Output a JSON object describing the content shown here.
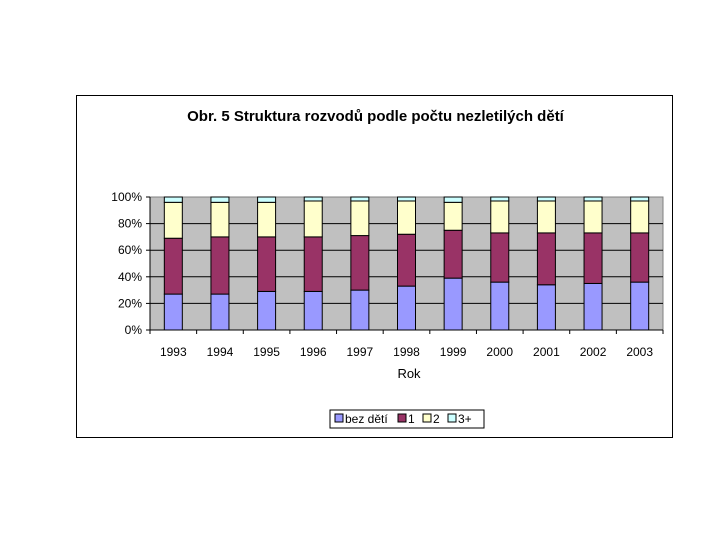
{
  "chart_data": {
    "type": "bar",
    "stacked": true,
    "percent_stacked": true,
    "title": "Obr. 5  Struktura rozvodů podle počtu nezletilých dětí",
    "xlabel": "Rok",
    "ylabel": "",
    "ylim": [
      0,
      100
    ],
    "yticks": [
      "0%",
      "20%",
      "40%",
      "60%",
      "80%",
      "100%"
    ],
    "categories": [
      "1993",
      "1994",
      "1995",
      "1996",
      "1997",
      "1998",
      "1999",
      "2000",
      "2001",
      "2002",
      "2003"
    ],
    "series": [
      {
        "name": "bez dětí",
        "color": "#9999FF",
        "values": [
          27,
          27,
          29,
          29,
          30,
          33,
          39,
          36,
          34,
          35,
          36
        ]
      },
      {
        "name": "1",
        "color": "#993366",
        "values": [
          42,
          43,
          41,
          41,
          41,
          39,
          36,
          37,
          39,
          38,
          37
        ]
      },
      {
        "name": "2",
        "color": "#FFFFCC",
        "values": [
          27,
          26,
          26,
          27,
          26,
          25,
          21,
          24,
          24,
          24,
          24
        ]
      },
      {
        "name": "3+",
        "color": "#CCFFFF",
        "values": [
          4,
          4,
          4,
          3,
          3,
          3,
          4,
          3,
          3,
          3,
          3
        ]
      }
    ],
    "plot_background": "#C0C0C0",
    "grid": true,
    "legend_position": "bottom"
  }
}
